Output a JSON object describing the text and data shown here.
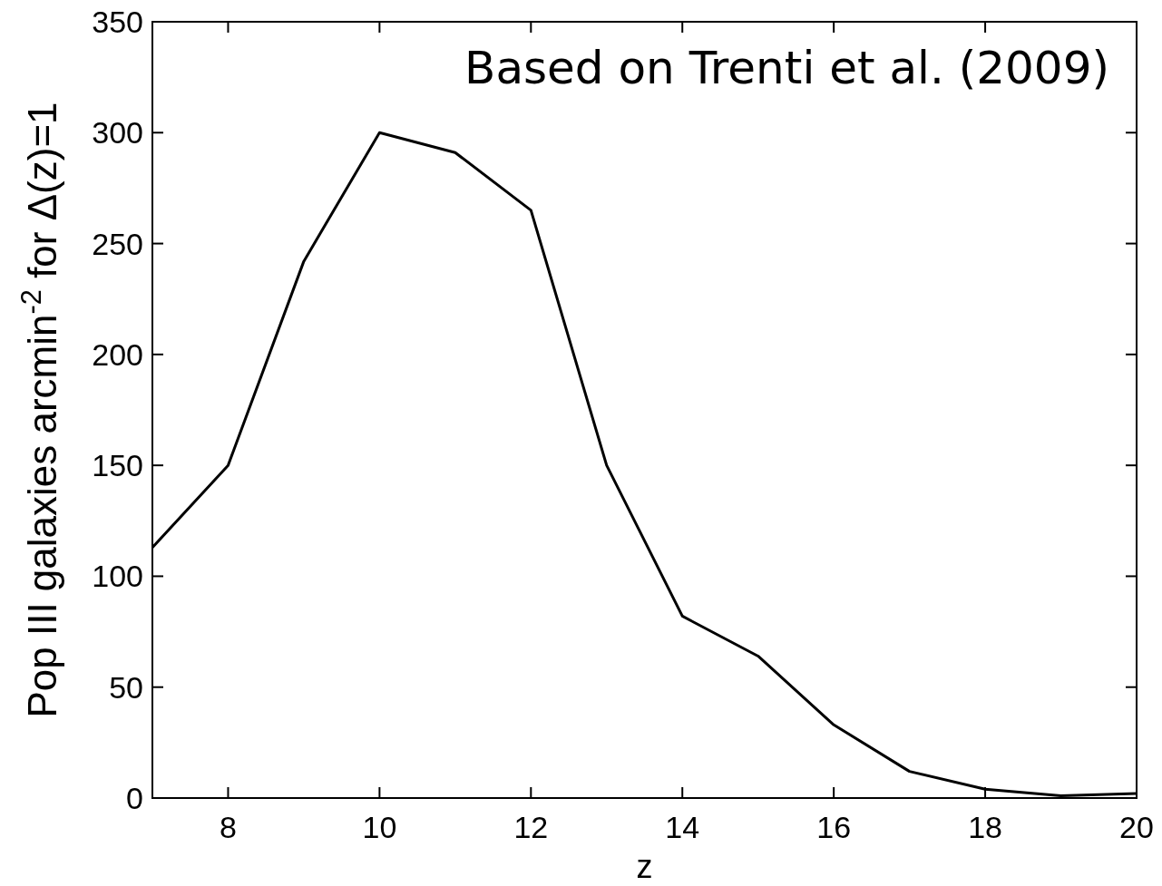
{
  "chart_data": {
    "type": "line",
    "xlabel": "z",
    "ylabel": "Pop III galaxies arcmin$^{-2}$ for Δ(z)=1",
    "annotations": [
      "Based on Trenti et al. (2009)"
    ],
    "x": [
      7,
      8,
      9,
      10,
      11,
      12,
      13,
      14,
      15,
      16,
      17,
      18,
      19,
      20
    ],
    "series": [
      {
        "color": "#000000",
        "values": [
          113,
          150,
          242,
          300,
          291,
          265,
          150,
          82,
          64,
          33,
          12,
          4,
          1,
          2
        ]
      }
    ],
    "xlim": [
      7,
      20
    ],
    "xticks": [
      8,
      10,
      12,
      14,
      16,
      18,
      20
    ],
    "ylim": [
      0,
      350
    ],
    "yticks": [
      0,
      50,
      100,
      150,
      200,
      250,
      300,
      350
    ],
    "grid": false,
    "marker": "none",
    "line_style": "solid"
  }
}
